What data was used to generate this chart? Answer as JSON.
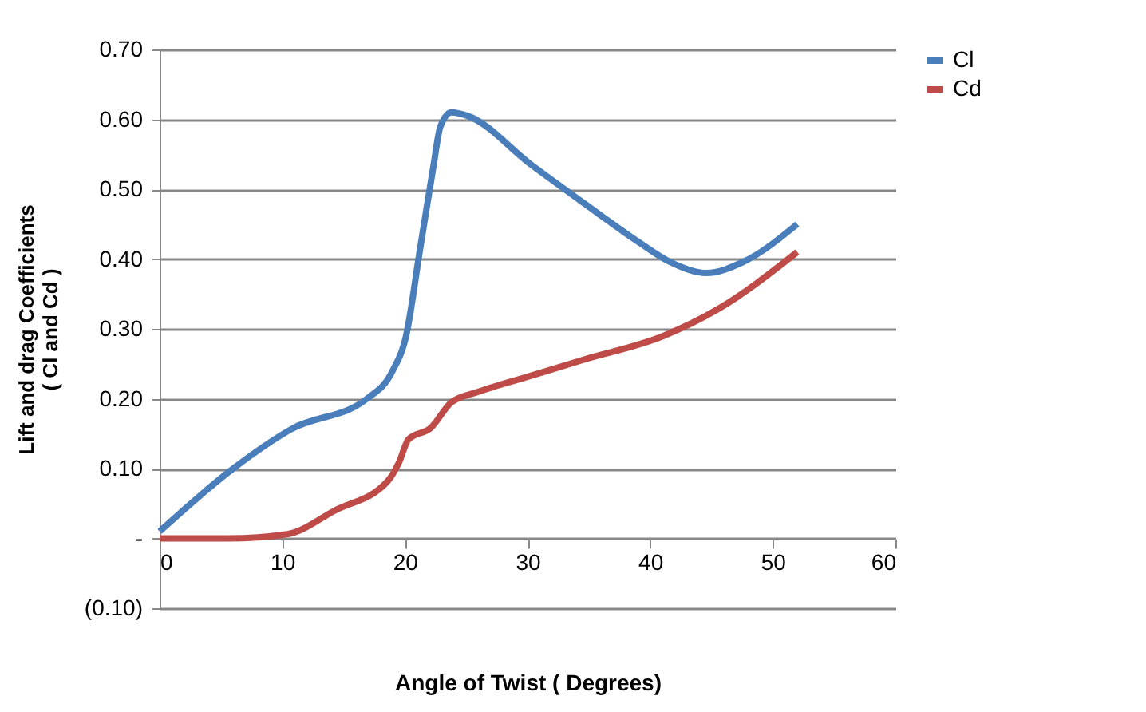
{
  "chart_data": {
    "type": "line",
    "xlabel": "Angle of Twist ( Degrees)",
    "ylabel": "Lift and drag Coefficients\n( Cl and Cd )",
    "xlim": [
      0,
      60
    ],
    "xticks": [
      0,
      10,
      20,
      30,
      40,
      50,
      60
    ],
    "ylim": [
      -0.1,
      0.7
    ],
    "yticks": [
      {
        "value": -0.1,
        "label": "(0.10)"
      },
      {
        "value": 0,
        "label": "-"
      },
      {
        "value": 0.1,
        "label": "0.10"
      },
      {
        "value": 0.2,
        "label": "0.20"
      },
      {
        "value": 0.3,
        "label": "0.30"
      },
      {
        "value": 0.4,
        "label": "0.40"
      },
      {
        "value": 0.5,
        "label": "0.50"
      },
      {
        "value": 0.6,
        "label": "0.60"
      },
      {
        "value": 0.7,
        "label": "0.70"
      }
    ],
    "grid": "y",
    "legend": "right",
    "marker": "none",
    "line_style": "solid",
    "series": [
      {
        "name": "Cl",
        "color": "#4a7ebb",
        "x": [
          0,
          6,
          10.8,
          16.9,
          19,
          20.1,
          21.2,
          22.3,
          22.9,
          23.8,
          25.1,
          30.3,
          34.6,
          39,
          41.6,
          44.6,
          47.6,
          52
        ],
        "values": [
          0.01,
          0.1,
          0.157,
          0.2,
          0.24,
          0.29,
          0.41,
          0.53,
          0.59,
          0.61,
          0.605,
          0.535,
          0.48,
          0.425,
          0.396,
          0.38,
          0.396,
          0.45
        ]
      },
      {
        "name": "Cd",
        "color": "#be4b48",
        "x": [
          0,
          5.6,
          10.4,
          14.3,
          18.6,
          19.5,
          20.3,
          22.1,
          23.8,
          26,
          30.3,
          34.6,
          41.1,
          45.5,
          52
        ],
        "values": [
          0,
          0,
          0.006,
          0.04,
          0.082,
          0.108,
          0.142,
          0.158,
          0.195,
          0.21,
          0.233,
          0.256,
          0.29,
          0.328,
          0.41
        ]
      }
    ]
  }
}
